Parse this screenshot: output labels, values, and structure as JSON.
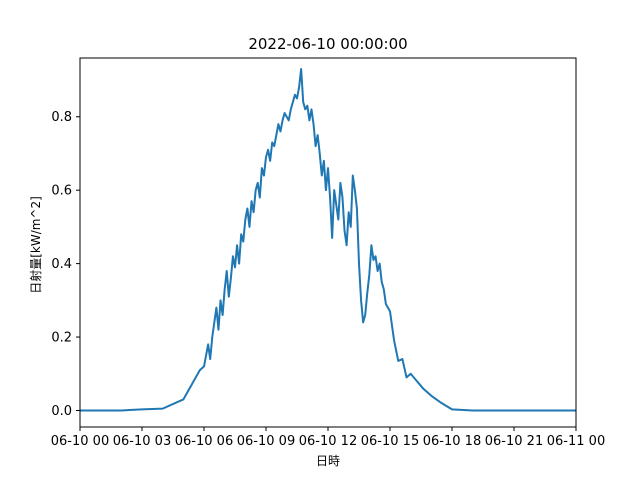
{
  "chart_data": {
    "type": "line",
    "title": "2022-06-10 00:00:00",
    "xlabel": "日時",
    "ylabel": "日射量[kW/m^2]",
    "x_tick_labels": [
      "06-10 00",
      "06-10 03",
      "06-10 06",
      "06-10 09",
      "06-10 12",
      "06-10 15",
      "06-10 18",
      "06-10 21",
      "06-11 00"
    ],
    "x_tick_hours": [
      0,
      3,
      6,
      9,
      12,
      15,
      18,
      21,
      24
    ],
    "y_tick_labels": [
      "0.0",
      "0.2",
      "0.4",
      "0.6",
      "0.8"
    ],
    "y_ticks": [
      0,
      0.2,
      0.4,
      0.6,
      0.8
    ],
    "xlim_hours": [
      0,
      24
    ],
    "ylim": [
      -0.045,
      0.96
    ],
    "grid": false,
    "series": [
      {
        "color": "#1f77b4",
        "x_hours": [
          0,
          1,
          2,
          3,
          4,
          5,
          5.3,
          5.6,
          5.8,
          6.0,
          6.1,
          6.2,
          6.3,
          6.4,
          6.5,
          6.6,
          6.7,
          6.8,
          6.9,
          7.0,
          7.1,
          7.2,
          7.3,
          7.4,
          7.5,
          7.6,
          7.7,
          7.8,
          7.9,
          8.0,
          8.1,
          8.2,
          8.3,
          8.4,
          8.5,
          8.6,
          8.7,
          8.8,
          8.9,
          9.0,
          9.1,
          9.2,
          9.3,
          9.4,
          9.5,
          9.6,
          9.7,
          9.8,
          9.9,
          10.0,
          10.1,
          10.2,
          10.3,
          10.4,
          10.5,
          10.6,
          10.7,
          10.8,
          10.9,
          11.0,
          11.1,
          11.2,
          11.3,
          11.4,
          11.5,
          11.6,
          11.7,
          11.8,
          11.9,
          12.0,
          12.1,
          12.2,
          12.3,
          12.4,
          12.5,
          12.6,
          12.7,
          12.8,
          12.9,
          13.0,
          13.1,
          13.2,
          13.3,
          13.4,
          13.5,
          13.6,
          13.7,
          13.8,
          13.9,
          14.0,
          14.1,
          14.2,
          14.3,
          14.4,
          14.5,
          14.6,
          14.7,
          14.8,
          14.9,
          15.0,
          15.2,
          15.4,
          15.6,
          15.8,
          16.0,
          16.3,
          16.6,
          17.0,
          17.5,
          18.0,
          19,
          20,
          21,
          22,
          23,
          24
        ],
        "values": [
          0.0,
          0.0,
          0.0,
          0.003,
          0.005,
          0.03,
          0.06,
          0.09,
          0.11,
          0.12,
          0.15,
          0.18,
          0.14,
          0.2,
          0.24,
          0.28,
          0.22,
          0.3,
          0.26,
          0.33,
          0.38,
          0.31,
          0.36,
          0.42,
          0.39,
          0.45,
          0.4,
          0.48,
          0.46,
          0.52,
          0.55,
          0.5,
          0.57,
          0.54,
          0.6,
          0.62,
          0.58,
          0.66,
          0.64,
          0.69,
          0.71,
          0.68,
          0.73,
          0.72,
          0.75,
          0.78,
          0.76,
          0.79,
          0.81,
          0.8,
          0.79,
          0.82,
          0.84,
          0.86,
          0.85,
          0.88,
          0.93,
          0.84,
          0.82,
          0.83,
          0.79,
          0.82,
          0.78,
          0.72,
          0.75,
          0.7,
          0.64,
          0.68,
          0.6,
          0.66,
          0.58,
          0.47,
          0.6,
          0.56,
          0.52,
          0.62,
          0.58,
          0.49,
          0.45,
          0.54,
          0.5,
          0.64,
          0.6,
          0.55,
          0.4,
          0.3,
          0.24,
          0.26,
          0.32,
          0.37,
          0.45,
          0.41,
          0.42,
          0.38,
          0.4,
          0.35,
          0.33,
          0.29,
          0.28,
          0.27,
          0.19,
          0.135,
          0.14,
          0.09,
          0.1,
          0.08,
          0.06,
          0.04,
          0.02,
          0.003,
          0.0,
          0.0,
          0.0,
          0.0,
          0.0,
          0.0
        ]
      }
    ]
  }
}
